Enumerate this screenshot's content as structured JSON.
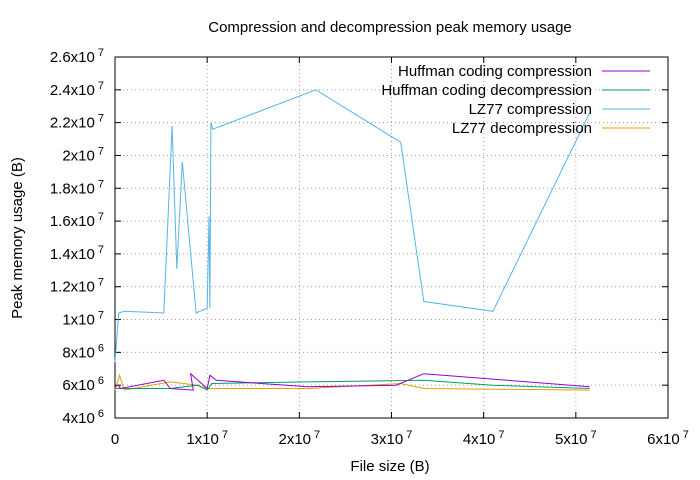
{
  "chart_data": {
    "type": "line",
    "title": "Compression and decompression peak memory usage",
    "xlabel": "File size (B)",
    "ylabel": "Peak memory usage (B)",
    "xlim": [
      0,
      60000000
    ],
    "ylim": [
      4000000,
      26000000
    ],
    "grid": true,
    "legend_position": "top-right",
    "x_ticks": [
      {
        "value": 0,
        "mantissa": "0",
        "exp": ""
      },
      {
        "value": 10000000,
        "mantissa": "1x10",
        "exp": "7"
      },
      {
        "value": 20000000,
        "mantissa": "2x10",
        "exp": "7"
      },
      {
        "value": 30000000,
        "mantissa": "3x10",
        "exp": "7"
      },
      {
        "value": 40000000,
        "mantissa": "4x10",
        "exp": "7"
      },
      {
        "value": 50000000,
        "mantissa": "5x10",
        "exp": "7"
      },
      {
        "value": 60000000,
        "mantissa": "6x10",
        "exp": "7"
      }
    ],
    "y_ticks": [
      {
        "value": 4000000,
        "mantissa": "4x10",
        "exp": "6"
      },
      {
        "value": 6000000,
        "mantissa": "6x10",
        "exp": "6"
      },
      {
        "value": 8000000,
        "mantissa": "8x10",
        "exp": "6"
      },
      {
        "value": 10000000,
        "mantissa": "1x10",
        "exp": "7"
      },
      {
        "value": 12000000,
        "mantissa": "1.2x10",
        "exp": "7"
      },
      {
        "value": 14000000,
        "mantissa": "1.4x10",
        "exp": "7"
      },
      {
        "value": 16000000,
        "mantissa": "1.6x10",
        "exp": "7"
      },
      {
        "value": 18000000,
        "mantissa": "1.8x10",
        "exp": "7"
      },
      {
        "value": 20000000,
        "mantissa": "2x10",
        "exp": "7"
      },
      {
        "value": 22000000,
        "mantissa": "2.2x10",
        "exp": "7"
      },
      {
        "value": 24000000,
        "mantissa": "2.4x10",
        "exp": "7"
      },
      {
        "value": 26000000,
        "mantissa": "2.6x10",
        "exp": "7"
      }
    ],
    "series": [
      {
        "name": "Huffman coding compression",
        "color": "#9400d3",
        "points": [
          [
            0,
            5900000
          ],
          [
            300000,
            6000000
          ],
          [
            600000,
            5800000
          ],
          [
            5300000,
            6300000
          ],
          [
            6000000,
            5800000
          ],
          [
            8500000,
            5700000
          ],
          [
            8200000,
            6700000
          ],
          [
            9000000,
            6300000
          ],
          [
            10000000,
            5800000
          ],
          [
            10300000,
            6600000
          ],
          [
            11000000,
            6300000
          ],
          [
            21000000,
            5900000
          ],
          [
            30500000,
            6000000
          ],
          [
            33500000,
            6700000
          ],
          [
            51500000,
            5900000
          ]
        ]
      },
      {
        "name": "Huffman coding decompression",
        "color": "#009e73",
        "points": [
          [
            0,
            5800000
          ],
          [
            2000000,
            5800000
          ],
          [
            6000000,
            5800000
          ],
          [
            9000000,
            6000000
          ],
          [
            10000000,
            5700000
          ],
          [
            10500000,
            6100000
          ],
          [
            21000000,
            6200000
          ],
          [
            33500000,
            6300000
          ],
          [
            41000000,
            6000000
          ],
          [
            51500000,
            5800000
          ]
        ]
      },
      {
        "name": "LZ77 compression",
        "color": "#56b4e9",
        "points": [
          [
            0,
            7400000
          ],
          [
            400000,
            10400000
          ],
          [
            1000000,
            10500000
          ],
          [
            5300000,
            10400000
          ],
          [
            6200000,
            21800000
          ],
          [
            6700000,
            13100000
          ],
          [
            7300000,
            19600000
          ],
          [
            8800000,
            10400000
          ],
          [
            10000000,
            10700000
          ],
          [
            10200000,
            16300000
          ],
          [
            10300000,
            10700000
          ],
          [
            10400000,
            22000000
          ],
          [
            10600000,
            21600000
          ],
          [
            21800000,
            24000000
          ],
          [
            31000000,
            20800000
          ],
          [
            33500000,
            11100000
          ],
          [
            41000000,
            10500000
          ],
          [
            51500000,
            22600000
          ]
        ]
      },
      {
        "name": "LZ77 decompression",
        "color": "#e69f00",
        "points": [
          [
            0,
            5700000
          ],
          [
            500000,
            6600000
          ],
          [
            1000000,
            5700000
          ],
          [
            6000000,
            6200000
          ],
          [
            9000000,
            6000000
          ],
          [
            10000000,
            5800000
          ],
          [
            21000000,
            5800000
          ],
          [
            31000000,
            6100000
          ],
          [
            33500000,
            5800000
          ],
          [
            51500000,
            5700000
          ]
        ]
      }
    ]
  }
}
